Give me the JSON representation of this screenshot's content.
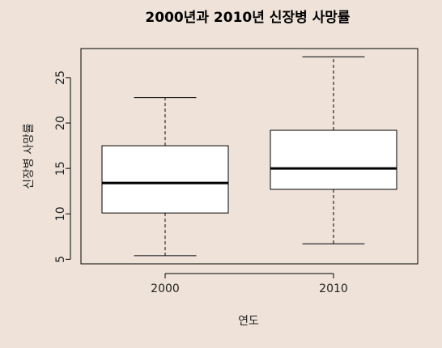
{
  "chart_data": {
    "type": "boxplot",
    "title": "2000년과 2010년 신장병 사망률",
    "xlabel": "연도",
    "ylabel": "신장병 사망률",
    "categories": [
      "2000",
      "2010"
    ],
    "boxes": [
      {
        "category": "2000",
        "whisker_low": 5.4,
        "q1": 10.1,
        "median": 13.4,
        "q3": 17.5,
        "whisker_high": 22.8
      },
      {
        "category": "2010",
        "whisker_low": 6.7,
        "q1": 12.7,
        "median": 15.0,
        "q3": 19.2,
        "whisker_high": 27.3
      }
    ],
    "yticks": [
      5,
      10,
      15,
      20,
      25
    ],
    "ylim": [
      4.5,
      28.2
    ],
    "grid": false,
    "box_fill": "#FFFFFF",
    "background": "#EFE3D9"
  }
}
